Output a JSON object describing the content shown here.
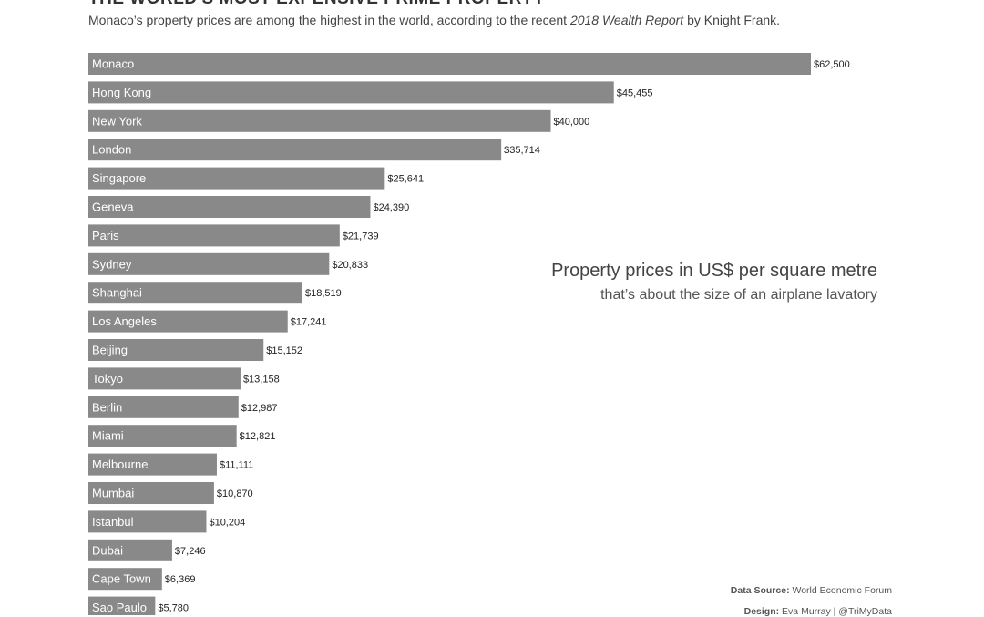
{
  "header": {
    "title": "THE WORLD'S MOST EXPENSIVE PRIME PROPERTY",
    "subtitle_pre": "Monaco’s property prices are among the highest in the world, according to the recent ",
    "subtitle_italic": "2018 Wealth Report",
    "subtitle_post": " by Knight Frank."
  },
  "annotation": {
    "title": "Property prices in US$ per square metre",
    "subtitle": "that’s about the  size of an airplane  lavatory"
  },
  "credits": {
    "source_label": "Data Source:",
    "source_value": " World Economic Forum",
    "design_label": "Design:",
    "design_value": " Eva Murray | @TriMyData"
  },
  "chart_data": {
    "type": "bar",
    "orientation": "horizontal",
    "bar_color": "#898989",
    "categories": [
      "Monaco",
      "Hong Kong",
      "New York",
      "London",
      "Singapore",
      "Geneva",
      "Paris",
      "Sydney",
      "Shanghai",
      "Los Angeles",
      "Beijing",
      "Tokyo",
      "Berlin",
      "Miami",
      "Melbourne",
      "Mumbai",
      "Istanbul",
      "Dubai",
      "Cape Town",
      "Sao Paulo"
    ],
    "values": [
      62500,
      45455,
      40000,
      35714,
      25641,
      24390,
      21739,
      20833,
      18519,
      17241,
      15152,
      13158,
      12987,
      12821,
      11111,
      10870,
      10204,
      7246,
      6369,
      5780
    ],
    "labels": [
      "$62,500",
      "$45,455",
      "$40,000",
      "$35,714",
      "$25,641",
      "$24,390",
      "$21,739",
      "$20,833",
      "$18,519",
      "$17,241",
      "$15,152",
      "$13,158",
      "$12,987",
      "$12,821",
      "$11,111",
      "$10,870",
      "$10,204",
      "$7,246",
      "$6,369",
      "$5,780"
    ],
    "grid": false
  }
}
